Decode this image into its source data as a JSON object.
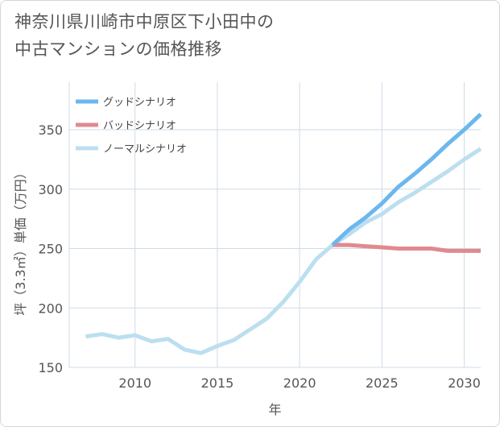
{
  "chart_data": {
    "type": "line",
    "title_line1": "神奈川県川崎市中原区下小田中の",
    "title_line2": "中古マンションの価格推移",
    "xlabel": "年",
    "ylabel": "坪（3.3㎡）単価（万円）",
    "xlim": [
      2006,
      2031
    ],
    "ylim": [
      150,
      390
    ],
    "xticks": [
      2010,
      2015,
      2020,
      2025,
      2030
    ],
    "yticks": [
      150,
      200,
      250,
      300,
      350
    ],
    "legend_position": "top-left",
    "series": [
      {
        "name": "グッドシナリオ",
        "color": "#6cb7ee",
        "x": [
          2022,
          2023,
          2024,
          2025,
          2026,
          2027,
          2028,
          2029,
          2030,
          2031
        ],
        "values": [
          253,
          266,
          276,
          288,
          302,
          313,
          325,
          338,
          350,
          363
        ]
      },
      {
        "name": "バッドシナリオ",
        "color": "#e08a8f",
        "x": [
          2022,
          2023,
          2024,
          2025,
          2026,
          2027,
          2028,
          2029,
          2030,
          2031
        ],
        "values": [
          253,
          253,
          252,
          251,
          250,
          250,
          250,
          248,
          248,
          248
        ]
      },
      {
        "name": "ノーマルシナリオ",
        "color": "#bcdff0",
        "x": [
          2007,
          2008,
          2009,
          2010,
          2011,
          2012,
          2013,
          2014,
          2015,
          2016,
          2017,
          2018,
          2019,
          2020,
          2021,
          2022,
          2023,
          2024,
          2025,
          2026,
          2027,
          2028,
          2029,
          2030,
          2031
        ],
        "values": [
          176,
          178,
          175,
          177,
          172,
          174,
          165,
          162,
          168,
          173,
          182,
          191,
          205,
          222,
          241,
          253,
          262,
          272,
          279,
          289,
          297,
          306,
          315,
          325,
          334
        ]
      }
    ]
  }
}
